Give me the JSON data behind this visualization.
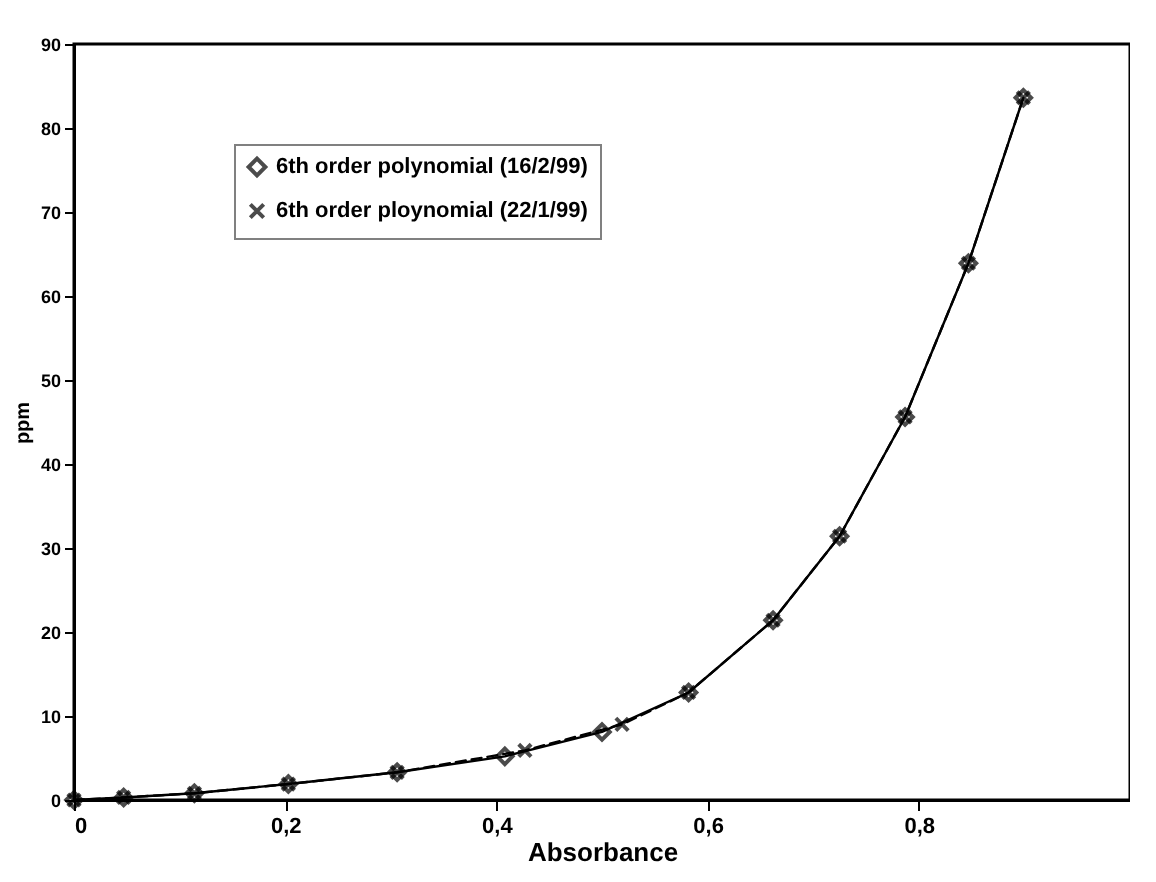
{
  "chart_data": {
    "type": "line",
    "xlabel": "Absorbance",
    "ylabel": "ppm",
    "xlim": [
      0,
      1
    ],
    "ylim": [
      0,
      90
    ],
    "xticks": [
      0,
      {
        "value": 0.2,
        "label": "0,2"
      },
      {
        "value": 0.4,
        "label": "0,4"
      },
      {
        "value": 0.6,
        "label": "0,6"
      },
      {
        "value": 0.8,
        "label": "0,8"
      }
    ],
    "yticks": [
      0,
      10,
      20,
      30,
      40,
      50,
      60,
      70,
      80,
      90
    ],
    "grid": false,
    "legend": "top left",
    "series": [
      {
        "name": "6th order polynomial (16/2/99)",
        "color": "#000000",
        "marker": "diamond",
        "line_style": "solid",
        "x": [
          0,
          0.047,
          0.114,
          0.203,
          0.306,
          0.408,
          0.5,
          0.582,
          0.662,
          0.725,
          0.787,
          0.847,
          0.899
        ],
        "values": [
          0,
          0.3,
          0.8,
          1.9,
          3.3,
          5.2,
          8.1,
          12.8,
          21.4,
          31.4,
          45.6,
          63.9,
          83.6
        ]
      },
      {
        "name": "6th order ploynomial (22/1/99)",
        "color": "#000000",
        "marker": "cross",
        "line_style": "dashed",
        "x": [
          0,
          0.047,
          0.114,
          0.203,
          0.306,
          0.427,
          0.519,
          0.582,
          0.662,
          0.725,
          0.787,
          0.847,
          0.899
        ],
        "values": [
          0,
          0.3,
          0.8,
          1.9,
          3.3,
          5.9,
          9.0,
          12.8,
          21.4,
          31.4,
          45.6,
          63.9,
          83.6
        ]
      }
    ]
  }
}
